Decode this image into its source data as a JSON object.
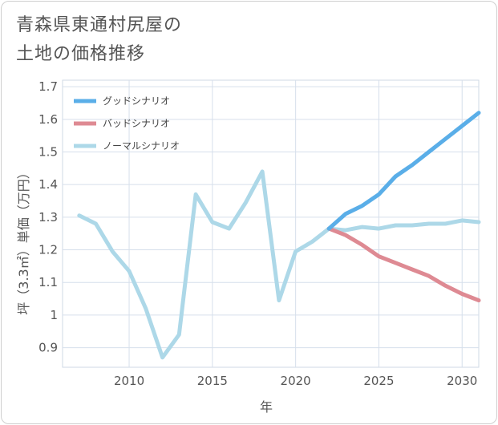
{
  "chart_data": {
    "type": "line",
    "title": "青森県東通村尻屋の\n土地の価格推移",
    "xlabel": "年",
    "ylabel": "坪（3.3㎡）単価（万円）",
    "xlim": [
      2006,
      2031
    ],
    "ylim": [
      0.84,
      1.72
    ],
    "x_ticks": [
      2010,
      2015,
      2020,
      2025,
      2030
    ],
    "y_ticks": [
      0.9,
      1,
      1.1,
      1.2,
      1.3,
      1.4,
      1.5,
      1.6,
      1.7
    ],
    "legend_position": "top-left",
    "series": [
      {
        "name": "グッドシナリオ",
        "color": "#5aaee8",
        "x": [
          2022,
          2023,
          2024,
          2025,
          2026,
          2027,
          2028,
          2029,
          2030,
          2031
        ],
        "values": [
          1.265,
          1.31,
          1.335,
          1.37,
          1.425,
          1.46,
          1.5,
          1.54,
          1.58,
          1.62
        ]
      },
      {
        "name": "バッドシナリオ",
        "color": "#de8a93",
        "x": [
          2022,
          2023,
          2024,
          2025,
          2026,
          2027,
          2028,
          2029,
          2030,
          2031
        ],
        "values": [
          1.265,
          1.245,
          1.215,
          1.18,
          1.16,
          1.14,
          1.12,
          1.09,
          1.065,
          1.045
        ]
      },
      {
        "name": "ノーマルシナリオ",
        "color": "#add8e8",
        "x": [
          2007,
          2008,
          2009,
          2010,
          2011,
          2012,
          2013,
          2014,
          2015,
          2016,
          2017,
          2018,
          2019,
          2020,
          2021,
          2022,
          2023,
          2024,
          2025,
          2026,
          2027,
          2028,
          2029,
          2030,
          2031
        ],
        "values": [
          1.305,
          1.28,
          1.195,
          1.135,
          1.02,
          0.87,
          0.94,
          1.37,
          1.285,
          1.265,
          1.345,
          1.44,
          1.045,
          1.195,
          1.225,
          1.265,
          1.26,
          1.27,
          1.265,
          1.275,
          1.275,
          1.28,
          1.28,
          1.29,
          1.285
        ]
      }
    ]
  }
}
